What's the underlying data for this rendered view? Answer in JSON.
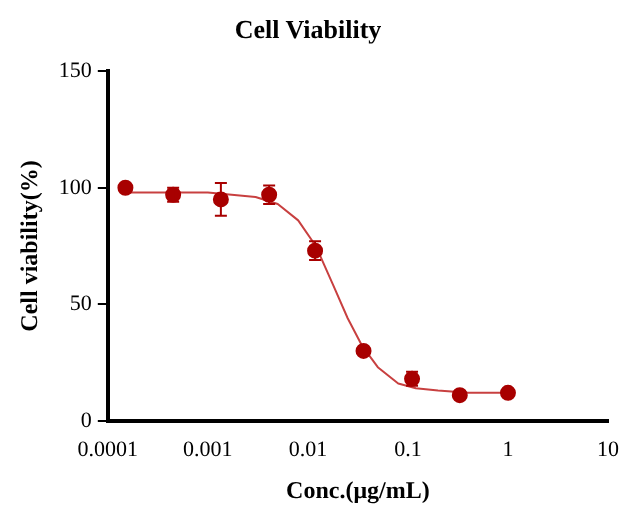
{
  "chart_data": {
    "type": "scatter",
    "title": "Cell Viability",
    "xlabel": "Conc.(μg/mL)",
    "ylabel": "Cell viability(%)",
    "log": "x",
    "xlim": [
      0.0001,
      10
    ],
    "xticks": [
      0.0001,
      0.001,
      0.01,
      0.1,
      1,
      10
    ],
    "ylim": [
      0,
      150
    ],
    "yticks": [
      0,
      50,
      100,
      150
    ],
    "grid": false,
    "legend": false,
    "marker": "circle",
    "series": [
      {
        "color": "#a80000",
        "x": [
          0.00015,
          0.00045,
          0.00135,
          0.0041,
          0.0118,
          0.036,
          0.11,
          0.33,
          1
        ],
        "values": [
          100,
          97,
          95,
          97,
          73,
          30,
          18,
          11,
          12
        ],
        "errors": [
          null,
          3,
          7,
          4,
          4,
          null,
          3,
          null,
          null
        ]
      },
      {
        "type": "line",
        "color": "#c84040",
        "marker": "none",
        "line_style": "solid",
        "x": [
          0.00015,
          0.001,
          0.003,
          0.005,
          0.008,
          0.012,
          0.018,
          0.025,
          0.035,
          0.05,
          0.08,
          0.12,
          0.2,
          0.4,
          1
        ],
        "values": [
          98,
          98,
          96,
          93,
          86,
          75,
          58,
          44,
          32,
          23,
          16,
          14,
          13,
          12,
          12
        ]
      }
    ]
  }
}
